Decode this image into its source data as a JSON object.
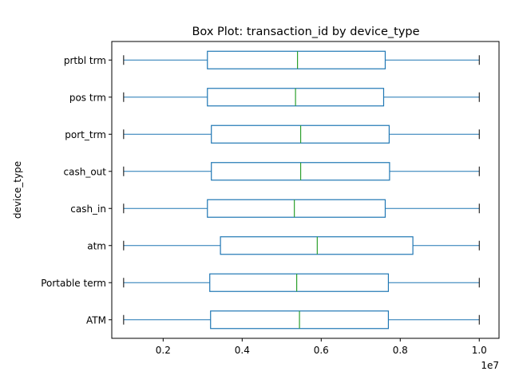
{
  "chart_data": {
    "type": "box",
    "orientation": "horizontal",
    "title": "Box Plot: transaction_id by device_type",
    "xlabel": "",
    "ylabel": "device_type",
    "x_offset_label": "1e7",
    "xlim": [
      0.07,
      1.05
    ],
    "x_ticks": [
      0.2,
      0.4,
      0.6,
      0.8,
      1.0
    ],
    "x_tick_labels": [
      "0.2",
      "0.4",
      "0.6",
      "0.8",
      "1.0"
    ],
    "grid": false,
    "colors": {
      "box": "#1f77b4",
      "median": "#2ca02c",
      "whisker": "#1f77b4",
      "cap": "#000000"
    },
    "categories": [
      "ATM",
      "Portable term",
      "atm",
      "cash_in",
      "cash_out",
      "port_trm",
      "pos trm",
      "prtbl trm"
    ],
    "boxes": [
      {
        "name": "ATM",
        "whislo": 0.1,
        "q1": 0.32,
        "med": 0.545,
        "q3": 0.77,
        "whishi": 1.0
      },
      {
        "name": "Portable term",
        "whislo": 0.1,
        "q1": 0.318,
        "med": 0.538,
        "q3": 0.77,
        "whishi": 1.0
      },
      {
        "name": "atm",
        "whislo": 0.1,
        "q1": 0.345,
        "med": 0.59,
        "q3": 0.832,
        "whishi": 1.0
      },
      {
        "name": "cash_in",
        "whislo": 0.1,
        "q1": 0.312,
        "med": 0.532,
        "q3": 0.762,
        "whishi": 1.0
      },
      {
        "name": "cash_out",
        "whislo": 0.1,
        "q1": 0.322,
        "med": 0.548,
        "q3": 0.773,
        "whishi": 1.0
      },
      {
        "name": "port_trm",
        "whislo": 0.1,
        "q1": 0.322,
        "med": 0.548,
        "q3": 0.772,
        "whishi": 1.0
      },
      {
        "name": "pos trm",
        "whislo": 0.1,
        "q1": 0.312,
        "med": 0.535,
        "q3": 0.758,
        "whishi": 1.0
      },
      {
        "name": "prtbl trm",
        "whislo": 0.1,
        "q1": 0.312,
        "med": 0.54,
        "q3": 0.762,
        "whishi": 1.0
      }
    ]
  }
}
